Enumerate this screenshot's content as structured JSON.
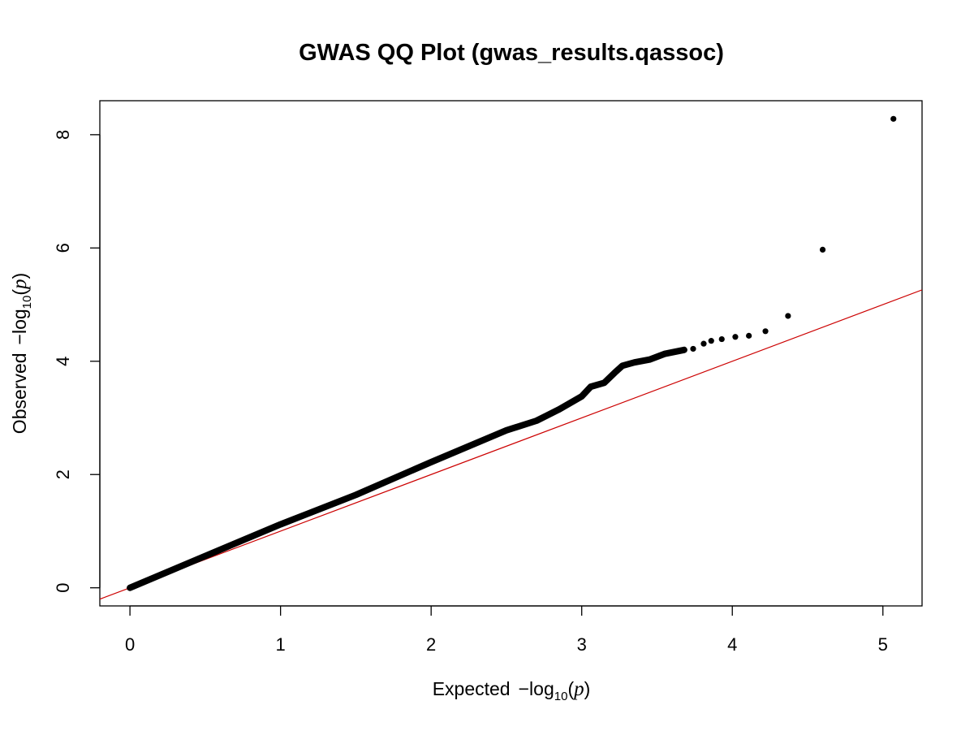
{
  "chart_data": {
    "type": "scatter",
    "title": "GWAS QQ Plot (gwas_results.qassoc)",
    "xlabel": {
      "prefix": "Expected",
      "minus": "−",
      "log": "log",
      "base": "10",
      "open": "(",
      "var": "p",
      "close": ")"
    },
    "ylabel": {
      "prefix": "Observed",
      "minus": "−",
      "log": "log",
      "base": "10",
      "open": "(",
      "var": "p",
      "close": ")"
    },
    "xlim": [
      -0.2,
      5.26
    ],
    "ylim": [
      -0.32,
      8.6
    ],
    "xticks": [
      0,
      1,
      2,
      3,
      4,
      5
    ],
    "yticks": [
      0,
      2,
      4,
      6,
      8
    ],
    "grid": false,
    "legend": "none",
    "reference_line": {
      "slope": 1,
      "intercept": 0,
      "color": "#cc0000"
    },
    "point_color": "#000000",
    "curve_points": [
      [
        0,
        0
      ],
      [
        0.5,
        0.56
      ],
      [
        1.0,
        1.12
      ],
      [
        1.5,
        1.64
      ],
      [
        2.0,
        2.22
      ],
      [
        2.5,
        2.78
      ],
      [
        2.7,
        2.95
      ],
      [
        2.85,
        3.15
      ],
      [
        3.0,
        3.38
      ],
      [
        3.06,
        3.55
      ],
      [
        3.15,
        3.62
      ],
      [
        3.22,
        3.8
      ],
      [
        3.27,
        3.92
      ],
      [
        3.35,
        3.98
      ],
      [
        3.45,
        4.03
      ],
      [
        3.55,
        4.13
      ],
      [
        3.68,
        4.2
      ]
    ],
    "tail_points": [
      {
        "x": 3.74,
        "y": 4.22
      },
      {
        "x": 3.81,
        "y": 4.31
      },
      {
        "x": 3.86,
        "y": 4.36
      },
      {
        "x": 3.93,
        "y": 4.39
      },
      {
        "x": 4.02,
        "y": 4.43
      },
      {
        "x": 4.11,
        "y": 4.45
      },
      {
        "x": 4.22,
        "y": 4.53
      },
      {
        "x": 4.37,
        "y": 4.8
      },
      {
        "x": 4.6,
        "y": 5.97
      },
      {
        "x": 5.07,
        "y": 8.28
      }
    ]
  }
}
